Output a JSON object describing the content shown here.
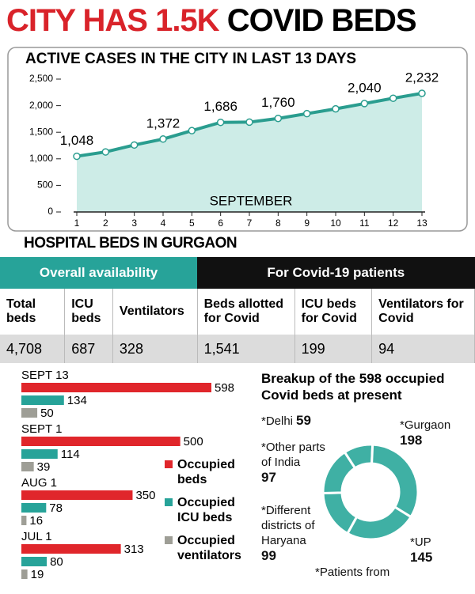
{
  "headline": [
    "CITY HAS 1.5K",
    "COVID BEDS"
  ],
  "section_title": "HOSPITAL BEDS IN GURGAON",
  "table": {
    "groups": [
      "Overall availability",
      "For Covid-19 patients"
    ],
    "columns": [
      "Total beds",
      "ICU beds",
      "Ventilators",
      "Beds allotted for Covid",
      "ICU beds for Covid",
      "Ventilators for Covid"
    ],
    "rows": [
      [
        "4,708",
        "687",
        "328",
        "1,541",
        "199",
        "94"
      ]
    ]
  },
  "chart_data": [
    {
      "type": "line",
      "title": "ACTIVE CASES IN THE CITY IN LAST 13 DAYS",
      "xlabel": "SEPTEMBER",
      "x": [
        1,
        2,
        3,
        4,
        5,
        6,
        7,
        8,
        9,
        10,
        11,
        12,
        13
      ],
      "values": [
        1048,
        1130,
        1260,
        1372,
        1530,
        1686,
        1690,
        1760,
        1850,
        1940,
        2040,
        2140,
        2232
      ],
      "value_labels": [
        "1,048",
        null,
        null,
        "1,372",
        null,
        "1,686",
        null,
        "1,760",
        null,
        null,
        "2,040",
        null,
        "2,232"
      ],
      "color": "#2a9d8f",
      "fill": "#cdece7",
      "xlim": [
        1,
        13
      ],
      "xticks": [
        1,
        2,
        3,
        4,
        5,
        6,
        7,
        8,
        9,
        10,
        11,
        12,
        13
      ],
      "ylim": [
        0,
        2500
      ],
      "yticks": [
        0,
        {
          "value": 500,
          "label": "500"
        },
        {
          "value": 1000,
          "label": "1,000"
        },
        {
          "value": 1500,
          "label": "1,500"
        },
        {
          "value": 2000,
          "label": "2,000"
        },
        {
          "value": 2500,
          "label": "2,500"
        }
      ]
    },
    {
      "type": "hbar",
      "categories": [
        "SEPT 13",
        "SEPT 1",
        "AUG 1",
        "JUL 1"
      ],
      "series": [
        {
          "name": "Occupied beds",
          "color": "#e0262b",
          "values": [
            598,
            500,
            350,
            313
          ]
        },
        {
          "name": "Occupied ICU beds",
          "color": "#27a399",
          "values": [
            134,
            114,
            78,
            80
          ]
        },
        {
          "name": "Occupied ventilators",
          "color": "#9e9e96",
          "values": [
            50,
            39,
            16,
            19
          ]
        }
      ]
    },
    {
      "type": "donut",
      "title": "Breakup of the 598 occupied Covid beds at present",
      "footnote": "*Patients from",
      "categories": [
        "*Delhi",
        "*Gurgaon",
        "*UP",
        "*Different districts of Haryana",
        "*Other parts of India"
      ],
      "values": [
        59,
        198,
        145,
        99,
        97
      ],
      "color": "#3fb0a4"
    }
  ]
}
